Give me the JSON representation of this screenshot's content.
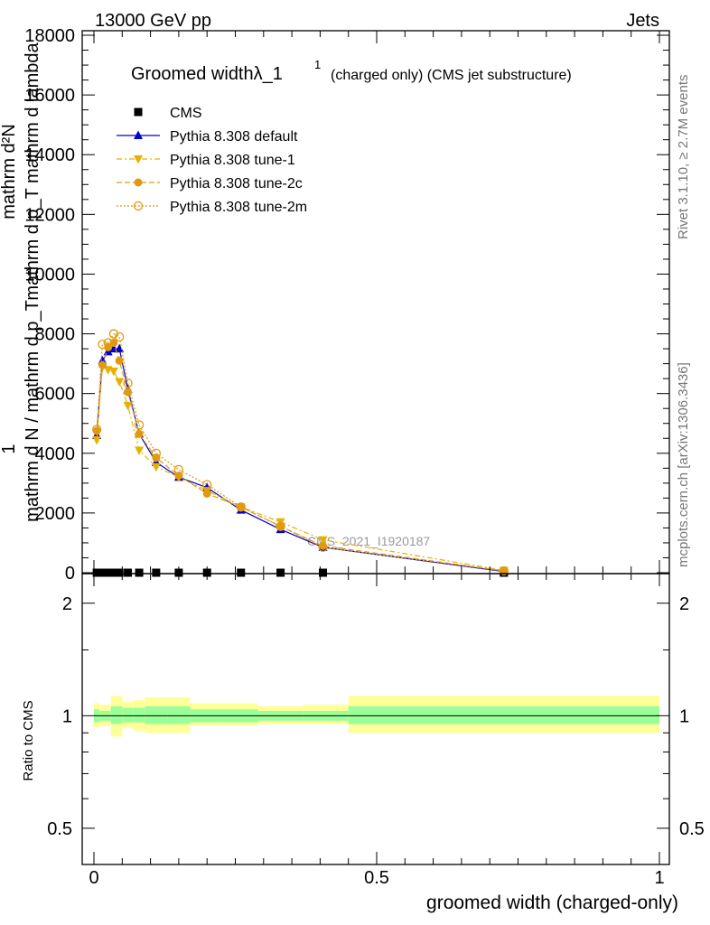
{
  "header": {
    "left": "13000 GeV pp",
    "right": "Jets"
  },
  "side_labels": {
    "rivet": "Rivet 3.1.10, ≥ 2.7M events",
    "mcplots": "mcplots.cern.ch [arXiv:1306.3436]"
  },
  "watermark": "CMS_2021_I1920187",
  "chart_data": [
    {
      "type": "line",
      "title": "Groomed widthλ_1",
      "title_sup": "1",
      "title_note": "(charged only) (CMS jet substructure)",
      "ylabel_numerator": "mathrm d²N",
      "ylabel_denominator": "mathrm d p_T mathrm d lambda",
      "ylabel_prefactor": "1",
      "ylabel_prefactor_den": "mathrm d N / mathrm d p_T",
      "xlim": [
        0,
        1
      ],
      "ylim": [
        0,
        18000
      ],
      "yticks": [
        0,
        2000,
        4000,
        6000,
        8000,
        10000,
        12000,
        14000,
        16000,
        18000
      ],
      "ytick_labels": [
        "0",
        "2000",
        "4000",
        "6000",
        "8000",
        "10000",
        "12000",
        "14000",
        "16000",
        "18000"
      ],
      "legend_position": "top-left",
      "x": [
        0.005,
        0.015,
        0.025,
        0.035,
        0.045,
        0.06,
        0.08,
        0.11,
        0.15,
        0.2,
        0.26,
        0.33,
        0.405,
        0.725
      ],
      "series": [
        {
          "name": "CMS",
          "color": "#000000",
          "marker": "square",
          "values": [
            0,
            0,
            0,
            0,
            0,
            0,
            0,
            0,
            0,
            0,
            0,
            0,
            0,
            0
          ]
        },
        {
          "name": "Pythia 8.308 default",
          "color": "#0000cc",
          "marker": "triangle-up",
          "dash": "solid",
          "values": [
            4600,
            7100,
            7400,
            7500,
            7500,
            6150,
            4650,
            3700,
            3200,
            2850,
            2100,
            1450,
            850,
            40
          ]
        },
        {
          "name": "Pythia 8.308 tune-1",
          "color": "#e8b000",
          "marker": "triangle-down",
          "dash": "dashdot",
          "values": [
            4450,
            6900,
            6800,
            6750,
            6400,
            5600,
            4100,
            3550,
            3200,
            2750,
            2200,
            1700,
            1100,
            80
          ]
        },
        {
          "name": "Pythia 8.308 tune-2c",
          "color": "#e09a10",
          "marker": "circle",
          "dash": "dashed",
          "values": [
            4750,
            6950,
            7550,
            7700,
            7100,
            6050,
            4650,
            3850,
            3250,
            2650,
            2200,
            1550,
            900,
            60
          ]
        },
        {
          "name": "Pythia 8.308 tune-2m",
          "color": "#e09a10",
          "marker": "open-circle",
          "dash": "dotted",
          "values": [
            4800,
            7650,
            7700,
            8000,
            7900,
            6350,
            4950,
            4000,
            3450,
            2950,
            2200,
            1550,
            850,
            60
          ]
        }
      ]
    },
    {
      "type": "area",
      "ylabel": "Ratio to CMS",
      "xlabel": "groomed width (charged-only)",
      "xlim": [
        0,
        1
      ],
      "ylim": [
        0.4,
        2.4
      ],
      "log_y": true,
      "yticks": [
        0.5,
        1,
        2
      ],
      "ytick_labels": [
        "0.5",
        "1",
        "2"
      ],
      "xticks": [
        0,
        0.5,
        1
      ],
      "xtick_labels": [
        "0",
        "0.5",
        "1"
      ],
      "reference_line": 1,
      "band_colors": {
        "inner": "#99ff99",
        "outer": "#ffff99"
      },
      "bins": [
        {
          "lo": 0.0,
          "hi": 0.01,
          "inner": [
            0.96,
            1.04
          ],
          "outer": [
            0.93,
            1.08
          ]
        },
        {
          "lo": 0.01,
          "hi": 0.02,
          "inner": [
            0.97,
            1.03
          ],
          "outer": [
            0.94,
            1.07
          ]
        },
        {
          "lo": 0.02,
          "hi": 0.03,
          "inner": [
            0.97,
            1.03
          ],
          "outer": [
            0.94,
            1.07
          ]
        },
        {
          "lo": 0.03,
          "hi": 0.05,
          "inner": [
            0.95,
            1.06
          ],
          "outer": [
            0.88,
            1.13
          ]
        },
        {
          "lo": 0.05,
          "hi": 0.07,
          "inner": [
            0.96,
            1.05
          ],
          "outer": [
            0.93,
            1.09
          ]
        },
        {
          "lo": 0.07,
          "hi": 0.09,
          "inner": [
            0.96,
            1.05
          ],
          "outer": [
            0.91,
            1.1
          ]
        },
        {
          "lo": 0.09,
          "hi": 0.13,
          "inner": [
            0.95,
            1.06
          ],
          "outer": [
            0.9,
            1.12
          ]
        },
        {
          "lo": 0.13,
          "hi": 0.17,
          "inner": [
            0.95,
            1.06
          ],
          "outer": [
            0.9,
            1.12
          ]
        },
        {
          "lo": 0.17,
          "hi": 0.23,
          "inner": [
            0.96,
            1.04
          ],
          "outer": [
            0.94,
            1.08
          ]
        },
        {
          "lo": 0.23,
          "hi": 0.29,
          "inner": [
            0.96,
            1.04
          ],
          "outer": [
            0.94,
            1.08
          ]
        },
        {
          "lo": 0.29,
          "hi": 0.37,
          "inner": [
            0.97,
            1.03
          ],
          "outer": [
            0.95,
            1.06
          ]
        },
        {
          "lo": 0.37,
          "hi": 0.45,
          "inner": [
            0.97,
            1.03
          ],
          "outer": [
            0.95,
            1.07
          ]
        },
        {
          "lo": 0.45,
          "hi": 1.0,
          "inner": [
            0.95,
            1.06
          ],
          "outer": [
            0.9,
            1.13
          ]
        }
      ]
    }
  ]
}
